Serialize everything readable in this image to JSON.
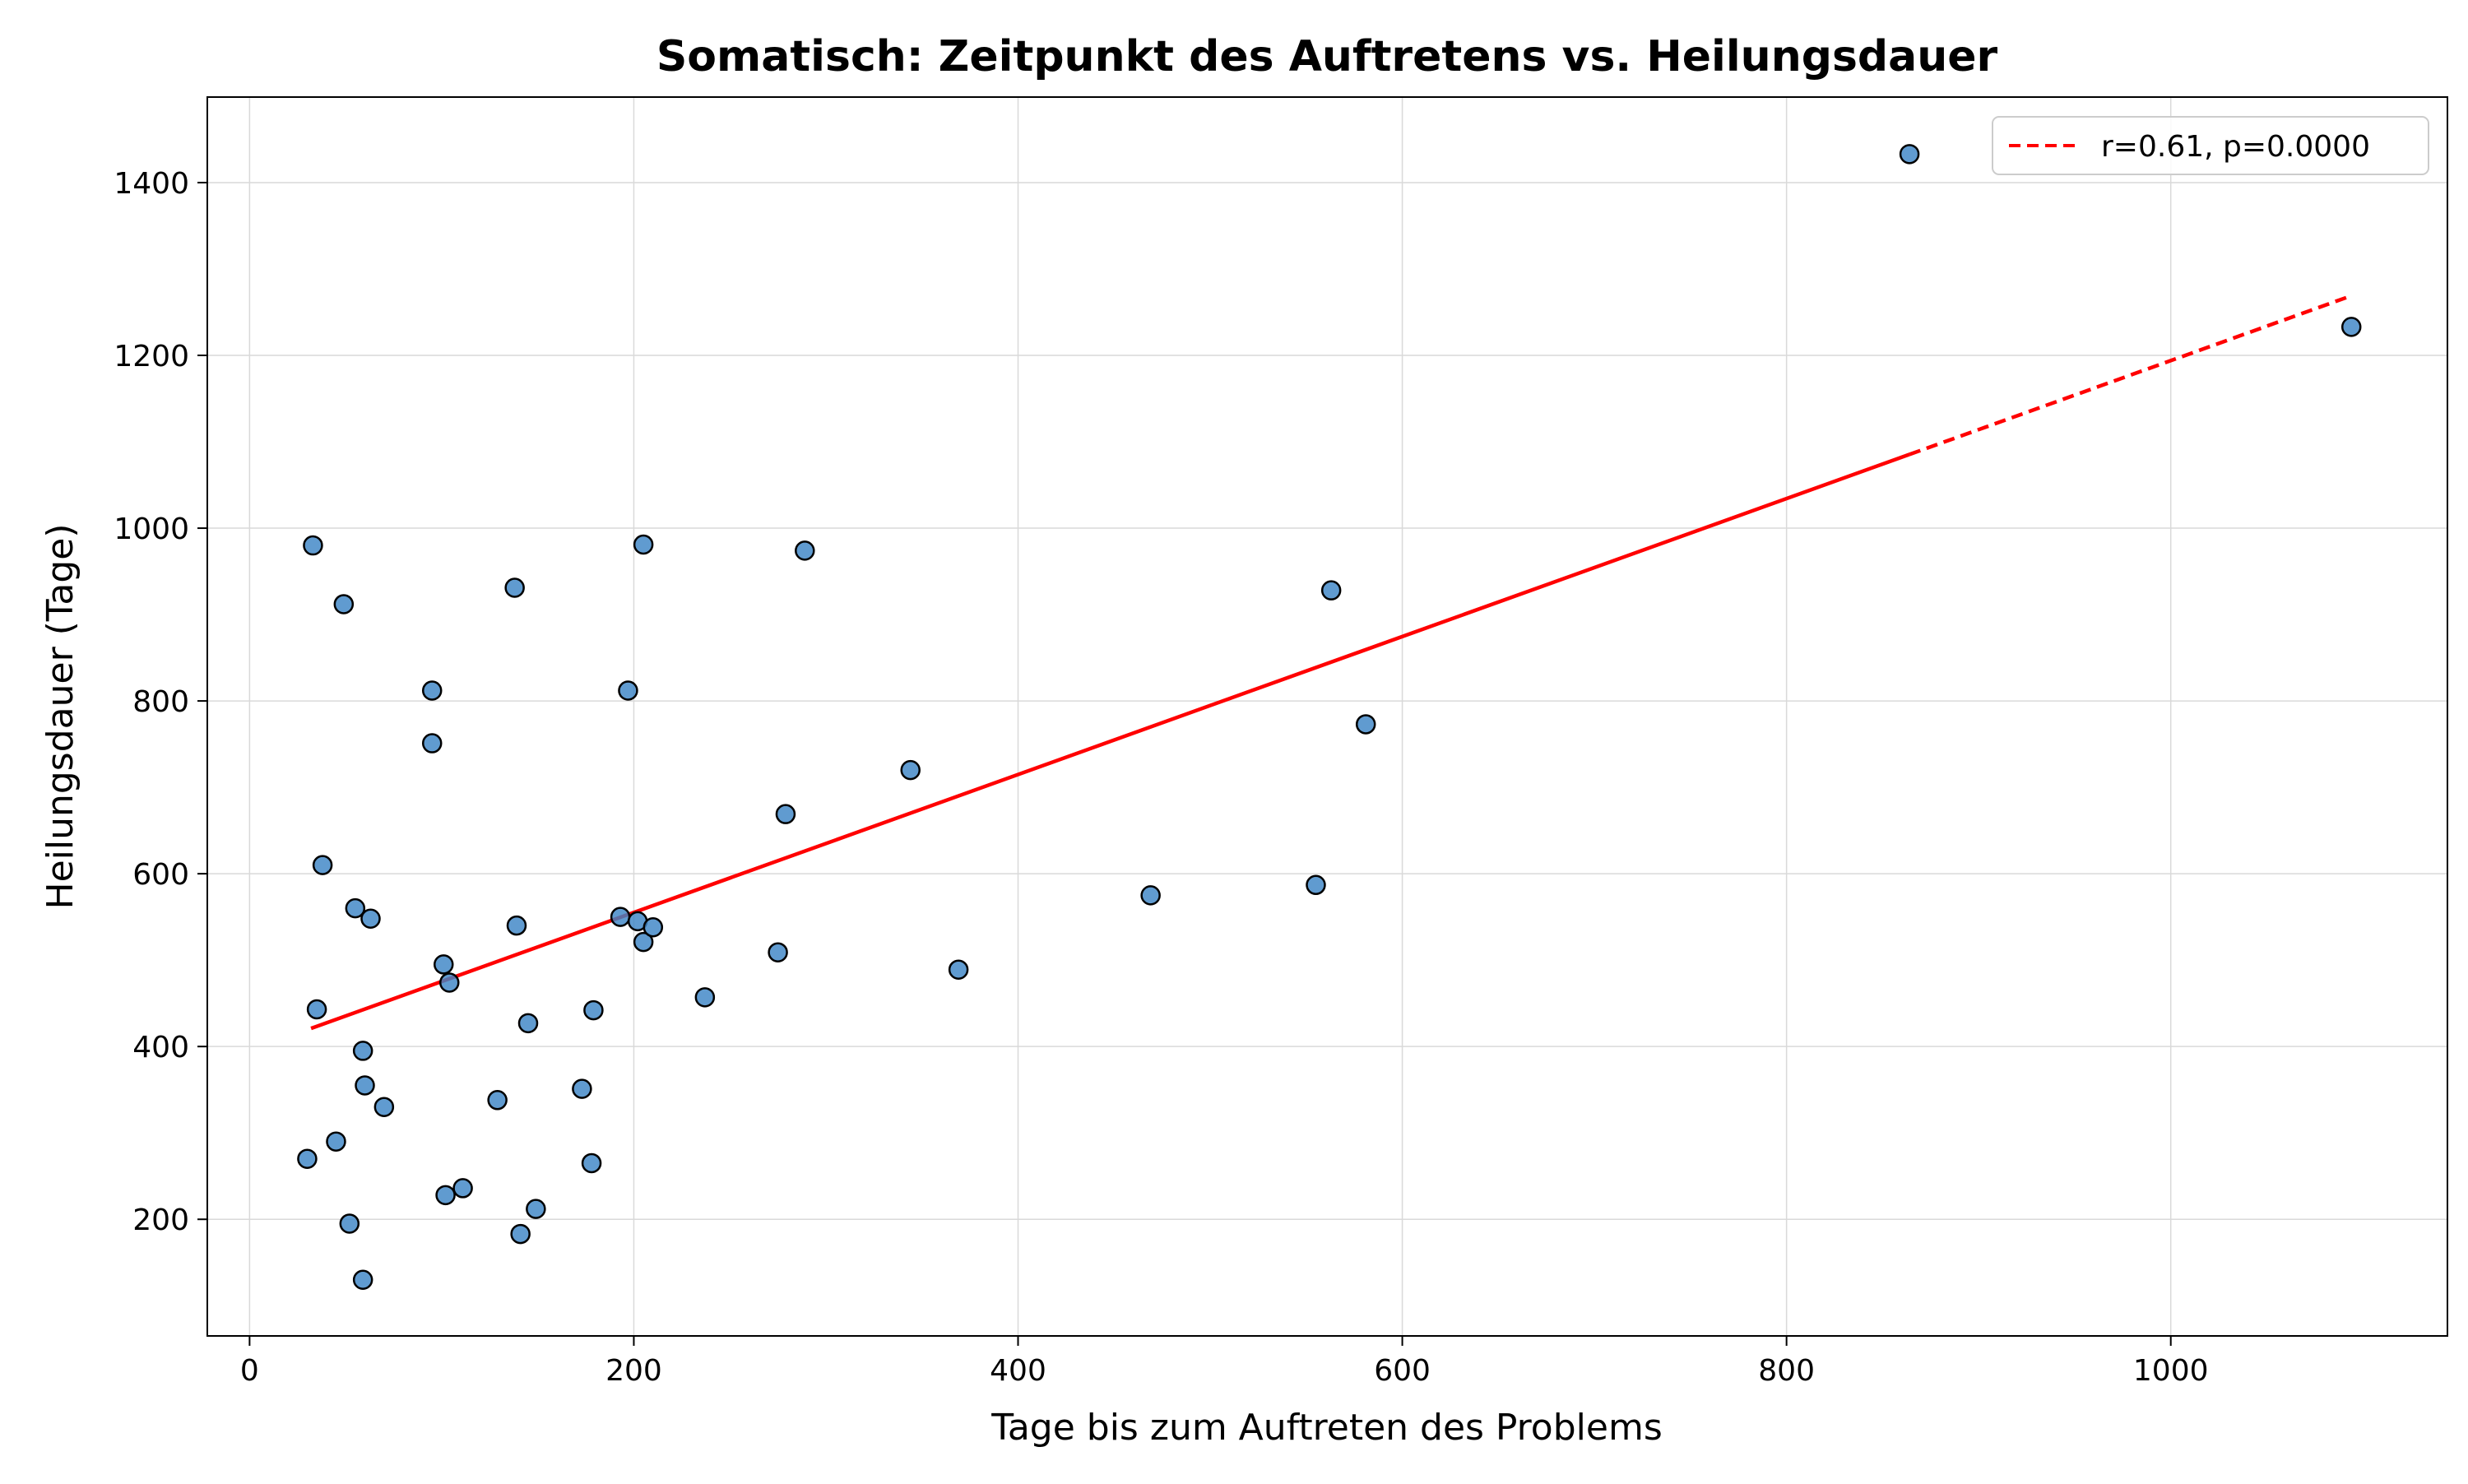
{
  "chart_data": {
    "type": "scatter",
    "title": "Somatisch: Zeitpunkt des Auftretens vs. Heilungsdauer",
    "xlabel": "Tage bis zum Auftreten des Problems",
    "ylabel": "Heilungsdauer (Tage)",
    "xlim": [
      -22,
      1144
    ],
    "ylim": [
      65,
      1499
    ],
    "xticks": [
      0,
      200,
      400,
      600,
      800,
      1000
    ],
    "yticks": [
      200,
      400,
      600,
      800,
      1000,
      1200,
      1400
    ],
    "grid": true,
    "legend": {
      "position": "top-right",
      "entries": [
        "r=0.61, p=0.0000"
      ]
    },
    "colors": {
      "points": "#3d85c6",
      "point_edge": "#000000",
      "fit_line": "#ff0000",
      "grid": "#d9d9d9"
    },
    "points": [
      {
        "x": 30,
        "y": 270
      },
      {
        "x": 33,
        "y": 980
      },
      {
        "x": 35,
        "y": 443
      },
      {
        "x": 38,
        "y": 610
      },
      {
        "x": 45,
        "y": 290
      },
      {
        "x": 49,
        "y": 912
      },
      {
        "x": 52,
        "y": 195
      },
      {
        "x": 55,
        "y": 560
      },
      {
        "x": 59,
        "y": 130
      },
      {
        "x": 59,
        "y": 395
      },
      {
        "x": 60,
        "y": 355
      },
      {
        "x": 63,
        "y": 548
      },
      {
        "x": 70,
        "y": 330
      },
      {
        "x": 95,
        "y": 812
      },
      {
        "x": 95,
        "y": 751
      },
      {
        "x": 101,
        "y": 495
      },
      {
        "x": 102,
        "y": 228
      },
      {
        "x": 104,
        "y": 474
      },
      {
        "x": 111,
        "y": 236
      },
      {
        "x": 129,
        "y": 338
      },
      {
        "x": 138,
        "y": 931
      },
      {
        "x": 139,
        "y": 540
      },
      {
        "x": 141,
        "y": 183
      },
      {
        "x": 145,
        "y": 427
      },
      {
        "x": 149,
        "y": 212
      },
      {
        "x": 173,
        "y": 351
      },
      {
        "x": 178,
        "y": 265
      },
      {
        "x": 179,
        "y": 442
      },
      {
        "x": 193,
        "y": 550
      },
      {
        "x": 197,
        "y": 812
      },
      {
        "x": 202,
        "y": 545
      },
      {
        "x": 205,
        "y": 981
      },
      {
        "x": 205,
        "y": 521
      },
      {
        "x": 210,
        "y": 538
      },
      {
        "x": 237,
        "y": 457
      },
      {
        "x": 275,
        "y": 509
      },
      {
        "x": 279,
        "y": 669
      },
      {
        "x": 289,
        "y": 974
      },
      {
        "x": 344,
        "y": 720
      },
      {
        "x": 369,
        "y": 489
      },
      {
        "x": 469,
        "y": 575
      },
      {
        "x": 555,
        "y": 587
      },
      {
        "x": 563,
        "y": 928
      },
      {
        "x": 581,
        "y": 773
      },
      {
        "x": 864,
        "y": 1433
      },
      {
        "x": 1094,
        "y": 1233
      }
    ],
    "fit_line": {
      "x": [
        32,
        1094
      ],
      "y": [
        421,
        1269
      ],
      "solid_until_x": 864,
      "legend_style": "dashed"
    }
  }
}
